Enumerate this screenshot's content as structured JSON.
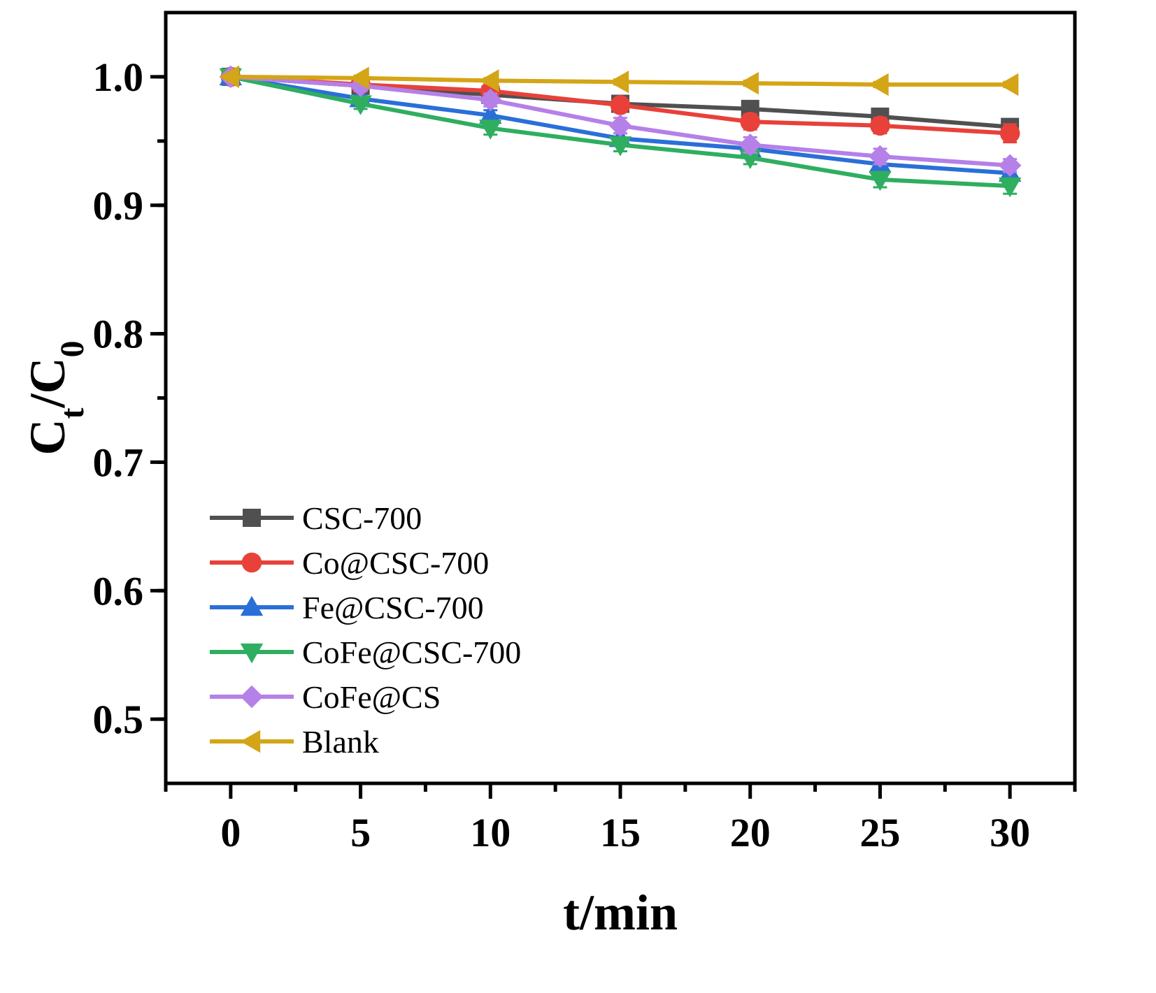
{
  "chart_data": {
    "type": "line",
    "title": "",
    "xlabel": "t/min",
    "ylabel_main": "C",
    "ylabel_sub1": "t",
    "ylabel_mid": "/C",
    "ylabel_sub2": "0",
    "xlim": [
      -2.5,
      32.5
    ],
    "ylim": [
      0.45,
      1.05
    ],
    "xticks": [
      0,
      5,
      10,
      15,
      20,
      25,
      30
    ],
    "xtick_labels": [
      "0",
      "5",
      "10",
      "15",
      "20",
      "25",
      "30"
    ],
    "yticks": [
      0.5,
      0.6,
      0.7,
      0.8,
      0.9,
      1.0
    ],
    "ytick_labels": [
      "0.5",
      "0.6",
      "0.7",
      "0.8",
      "0.9",
      "1.0"
    ],
    "grid": false,
    "legend_position": "bottom-left",
    "x": [
      0,
      5,
      10,
      15,
      20,
      25,
      30
    ],
    "series": [
      {
        "name": "CSC-700",
        "marker": "square",
        "color": "#505050",
        "values": [
          1.0,
          0.993,
          0.986,
          0.979,
          0.975,
          0.969,
          0.961
        ],
        "errors": [
          0.003,
          0.003,
          0.003,
          0.004,
          0.004,
          0.005,
          0.005
        ]
      },
      {
        "name": "Co@CSC-700",
        "marker": "circle",
        "color": "#e8413a",
        "values": [
          1.0,
          0.994,
          0.989,
          0.978,
          0.965,
          0.962,
          0.956
        ],
        "errors": [
          0.003,
          0.003,
          0.004,
          0.005,
          0.006,
          0.006,
          0.007
        ]
      },
      {
        "name": "Fe@CSC-700",
        "marker": "triangle-up",
        "color": "#2a6fd8",
        "values": [
          1.0,
          0.983,
          0.97,
          0.952,
          0.944,
          0.932,
          0.925
        ],
        "errors": [
          0.003,
          0.003,
          0.004,
          0.004,
          0.004,
          0.005,
          0.005
        ]
      },
      {
        "name": "CoFe@CSC-700",
        "marker": "triangle-down",
        "color": "#2fae60",
        "values": [
          1.0,
          0.979,
          0.96,
          0.947,
          0.937,
          0.92,
          0.915
        ],
        "errors": [
          0.003,
          0.004,
          0.005,
          0.005,
          0.005,
          0.006,
          0.006
        ]
      },
      {
        "name": "CoFe@CS",
        "marker": "diamond",
        "color": "#b580e8",
        "values": [
          1.0,
          0.993,
          0.982,
          0.962,
          0.947,
          0.938,
          0.931
        ],
        "errors": [
          0.003,
          0.004,
          0.005,
          0.006,
          0.006,
          0.006,
          0.005
        ]
      },
      {
        "name": "Blank",
        "marker": "triangle-left",
        "color": "#d4a516",
        "values": [
          1.0,
          0.999,
          0.997,
          0.996,
          0.995,
          0.994,
          0.994
        ],
        "errors": [
          0.002,
          0.002,
          0.002,
          0.002,
          0.002,
          0.002,
          0.002
        ]
      }
    ]
  }
}
